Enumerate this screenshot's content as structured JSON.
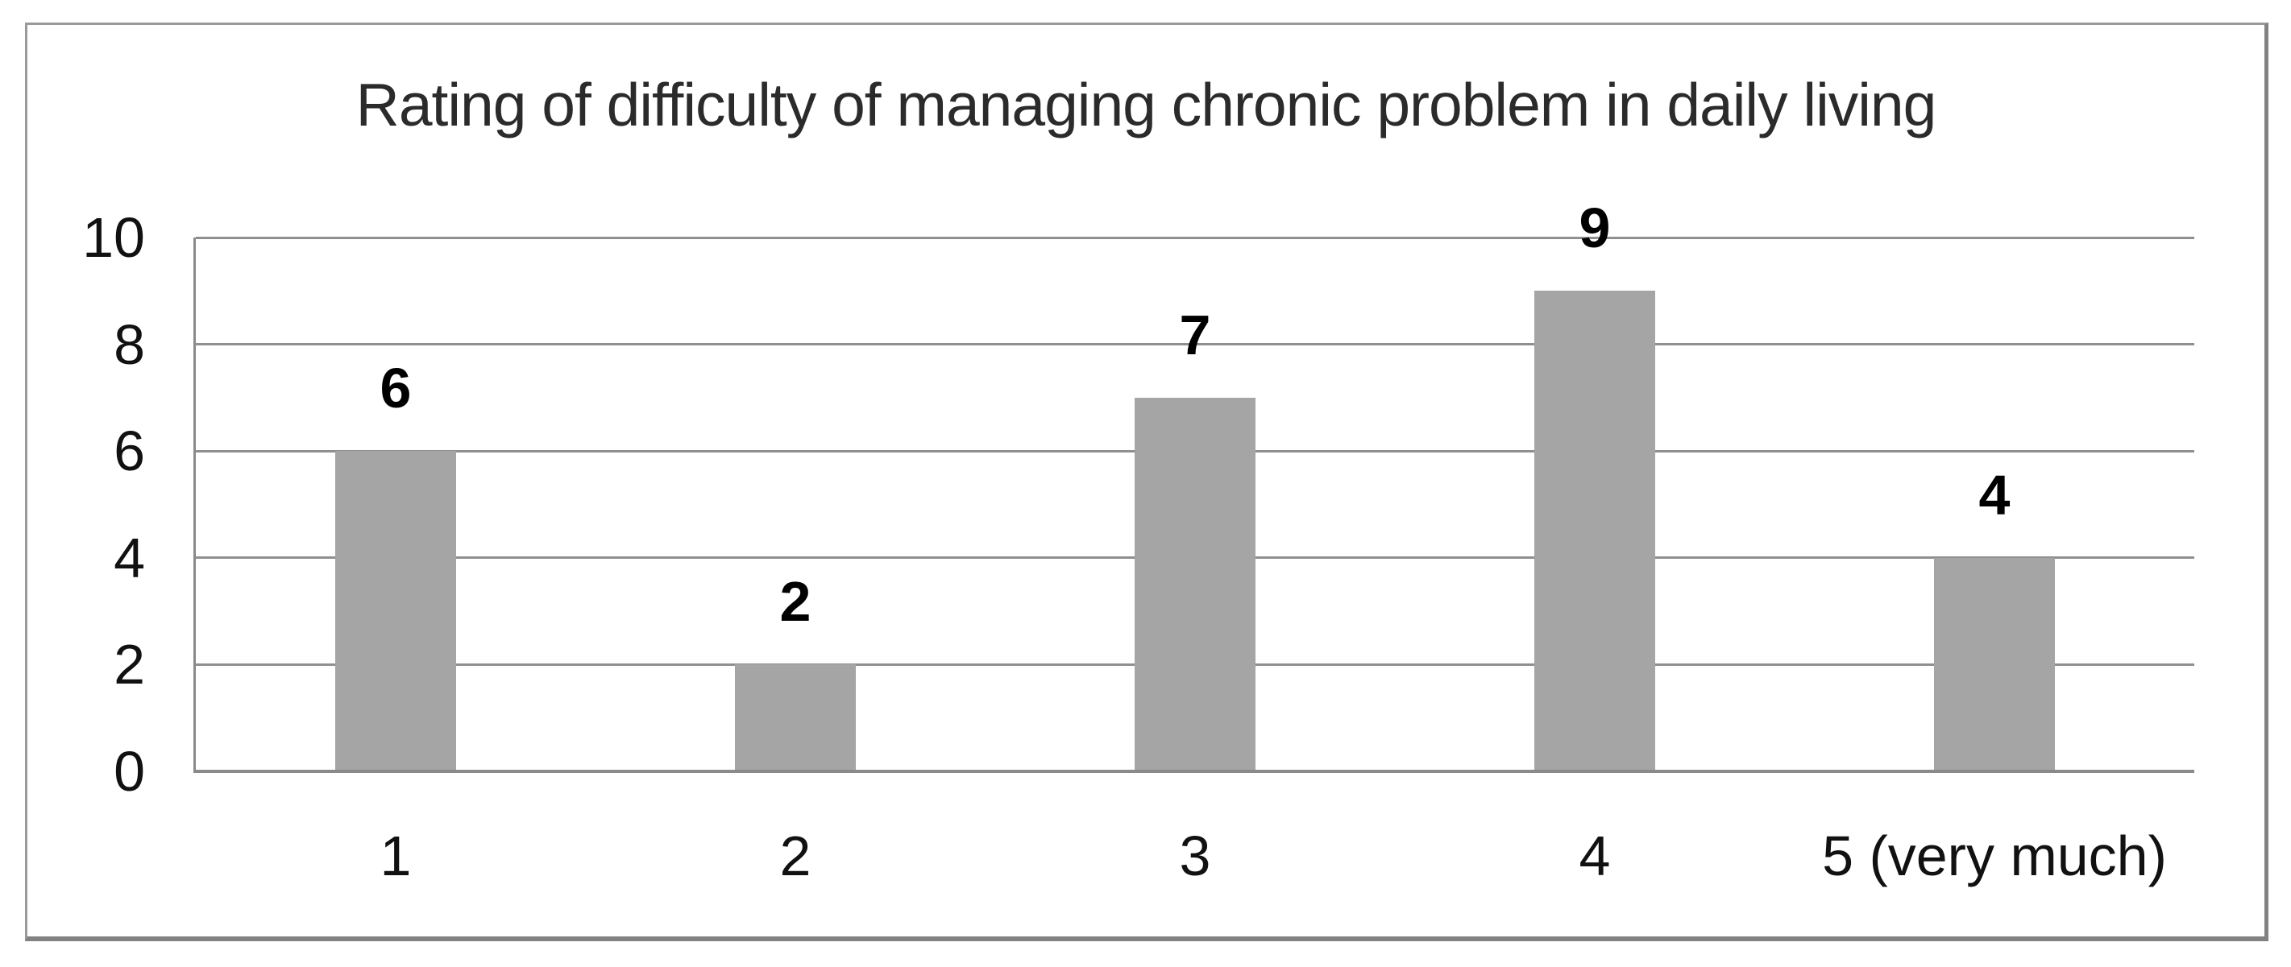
{
  "chart_data": {
    "type": "bar",
    "title": "Rating of difficulty of managing chronic problem in daily living",
    "categories": [
      "1",
      "2",
      "3",
      "4",
      "5 (very much)"
    ],
    "values": [
      6,
      2,
      7,
      9,
      4
    ],
    "data_labels": [
      "6",
      "2",
      "7",
      "9",
      "4"
    ],
    "y_ticks": [
      "0",
      "2",
      "4",
      "6",
      "8",
      "10"
    ],
    "ylim": [
      0,
      10
    ],
    "xlabel": "",
    "ylabel": "",
    "grid": true,
    "legend": false,
    "colors": {
      "bar": "#a5a5a5",
      "gridline": "#8f8f8f",
      "axis_line": "#8a8a8a",
      "frame_border": "#8a8a8a",
      "title_text": "#2b2b2b",
      "tick_text": "#111111",
      "data_label_text": "#000000",
      "background": "#ffffff"
    }
  }
}
